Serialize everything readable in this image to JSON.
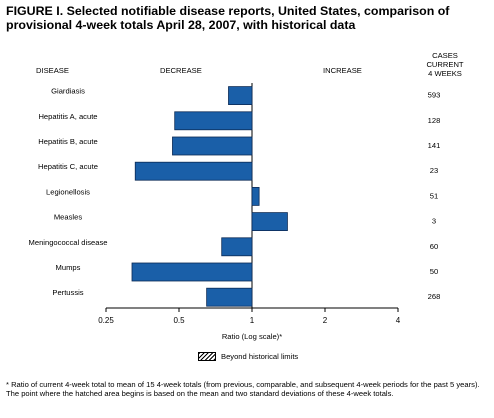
{
  "figure": {
    "title": "FIGURE I. Selected notifiable disease reports, United States, comparison of provisional 4-week totals April 28, 2007, with historical data",
    "header_disease": "DISEASE",
    "header_decrease": "DECREASE",
    "header_increase": "INCREASE",
    "header_cases_line1": "CASES CURRENT",
    "header_cases_line2": "4 WEEKS",
    "legend_label": "Beyond historical limits",
    "footnote": "* Ratio of current 4-week total to mean of 15 4-week totals (from previous, comparable, and subsequent 4-week periods for the past 5 years). The point where the hatched area begins is based on the mean and two standard deviations of these 4-week totals."
  },
  "colors": {
    "bar": "#1a5fa8",
    "bar_stroke": "#0b2a55"
  },
  "chart_data": {
    "type": "bar",
    "orientation": "horizontal",
    "categories": [
      "Giardiasis",
      "Hepatitis A, acute",
      "Hepatitis B, acute",
      "Hepatitis C, acute",
      "Legionellosis",
      "Measles",
      "Meningococcal disease",
      "Mumps",
      "Pertussis"
    ],
    "series": [
      {
        "values": [
          0.8,
          0.48,
          0.47,
          0.33,
          1.07,
          1.4,
          0.75,
          0.32,
          0.65
        ]
      }
    ],
    "cases_current_4_weeks": [
      "593",
      "128",
      "141",
      "23",
      "51",
      "3",
      "60",
      "50",
      "268"
    ],
    "xlabel": "Ratio (Log scale)*",
    "xscale": "log2",
    "xlim": [
      0.25,
      4
    ],
    "xticks": [
      0.25,
      0.5,
      1,
      2,
      4
    ],
    "xtick_labels": [
      "0.25",
      "0.5",
      "1",
      "2",
      "4"
    ],
    "baseline": 1,
    "beyond_historical_limits": [
      false,
      false,
      false,
      false,
      false,
      false,
      false,
      false,
      false
    ],
    "grid": false
  }
}
